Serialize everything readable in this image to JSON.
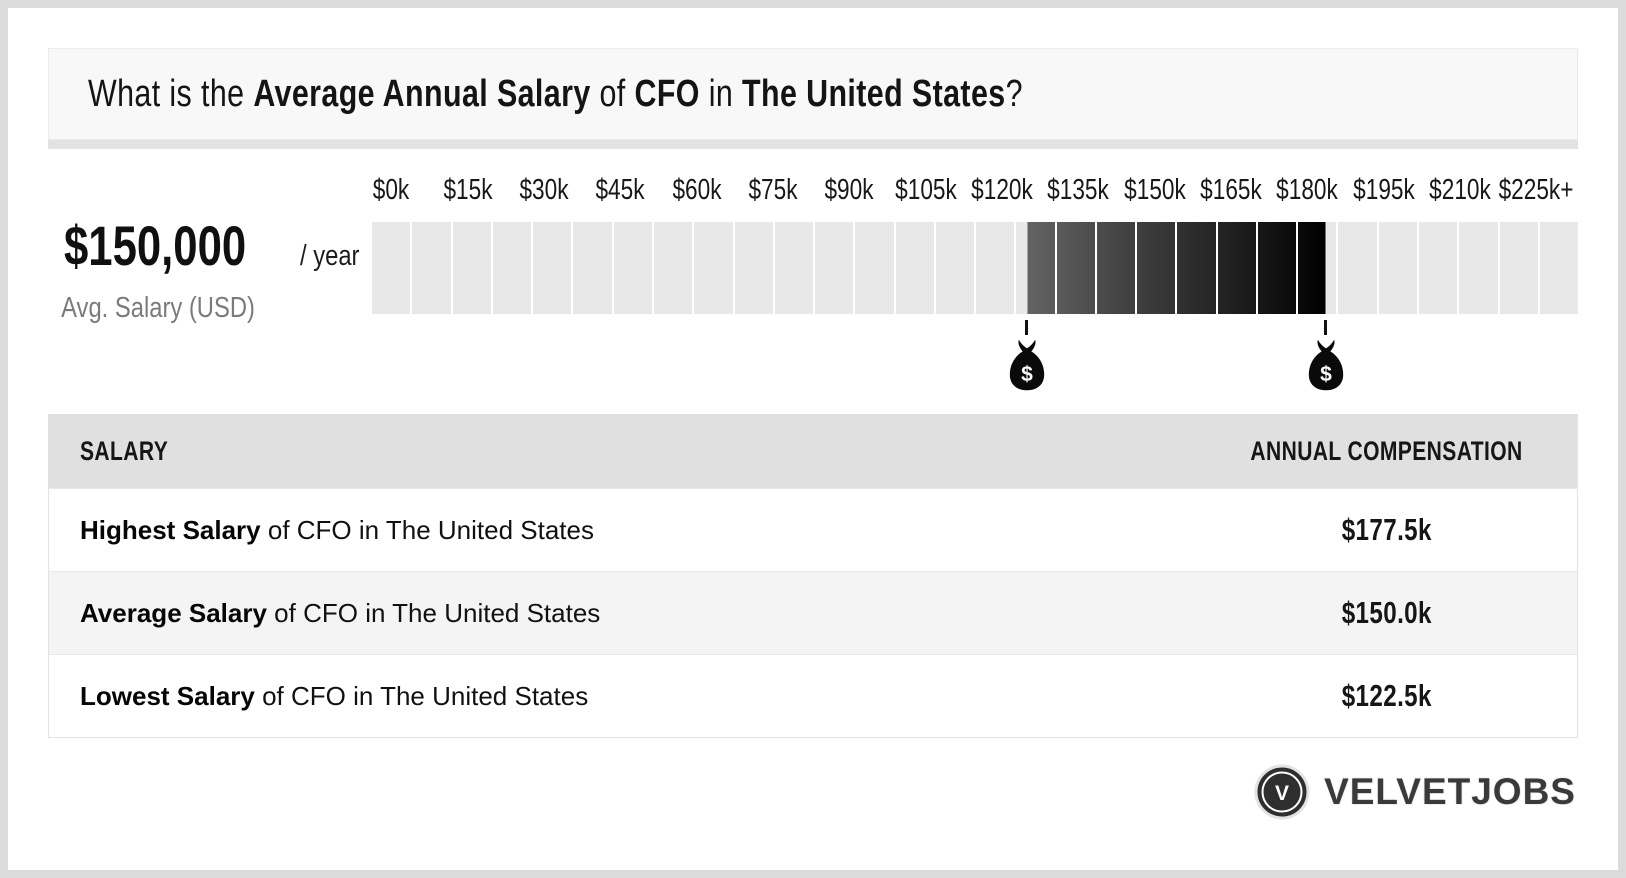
{
  "header": {
    "parts": [
      {
        "text": "What is the ",
        "bold": false
      },
      {
        "text": "Average Annual Salary",
        "bold": true
      },
      {
        "text": " of ",
        "bold": false
      },
      {
        "text": "CFO",
        "bold": true
      },
      {
        "text": " in ",
        "bold": false
      },
      {
        "text": "The United States",
        "bold": true
      },
      {
        "text": "?",
        "bold": false
      }
    ]
  },
  "stat": {
    "amount": "$150,000",
    "period": "/ year",
    "caption": "Avg. Salary (USD)"
  },
  "chart_data": {
    "type": "bar",
    "title": "CFO salary range gauge (USD)",
    "axis_ticks": [
      "$0k",
      "$15k",
      "$30k",
      "$45k",
      "$60k",
      "$75k",
      "$90k",
      "$105k",
      "$120k",
      "$135k",
      "$150k",
      "$165k",
      "$180k",
      "$195k",
      "$210k",
      "$225k+"
    ],
    "axis_range_k": [
      0,
      225
    ],
    "values_k": {
      "lowest": 122.5,
      "average": 150.0,
      "highest": 177.5
    },
    "layout": {
      "segments_total": 30,
      "tick_first_pct": 1.6,
      "tick_step_pct": 6.33,
      "highlight_start_pct": 54.3,
      "highlight_end_pct": 79.1,
      "grid": "segmented-gauge",
      "legend": "none"
    },
    "colors": {
      "segment": "#e8e8e8",
      "highlight_start": "#636363",
      "highlight_end": "#000000"
    },
    "markers": [
      {
        "name": "lowest-salary-marker",
        "pct": 54.3,
        "value_k": 122.5,
        "icon": "money-bag-icon",
        "glyph": "$"
      },
      {
        "name": "highest-salary-marker",
        "pct": 79.1,
        "value_k": 177.5,
        "icon": "money-bag-icon",
        "glyph": "$"
      }
    ]
  },
  "table": {
    "headers": {
      "salary": "SALARY",
      "compensation": "ANNUAL COMPENSATION"
    },
    "rows": [
      {
        "bold": "Highest Salary",
        "rest": " of CFO in The United States",
        "value": "$177.5k"
      },
      {
        "bold": "Average Salary",
        "rest": " of CFO in The United States",
        "value": "$150.0k"
      },
      {
        "bold": "Lowest Salary",
        "rest": " of CFO in The United States",
        "value": "$122.5k"
      }
    ]
  },
  "brand": {
    "name": "VELVETJOBS",
    "monogram": "V"
  }
}
